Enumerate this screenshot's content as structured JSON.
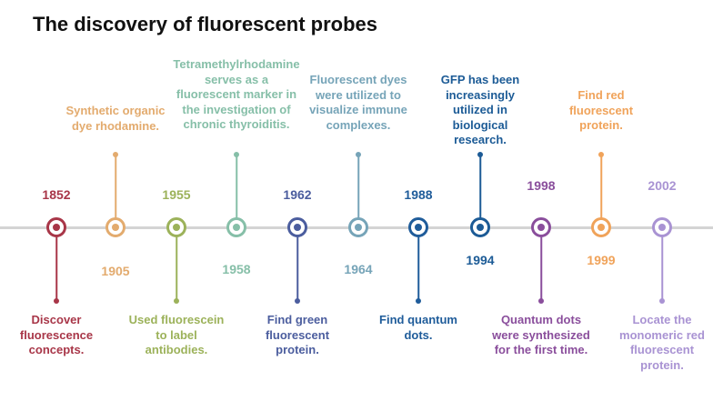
{
  "title": "The discovery of fluorescent probes",
  "events": [
    {
      "year": "1852",
      "color": "#a83648",
      "text": [
        "Discover",
        "fluorescence",
        "concepts."
      ]
    },
    {
      "year": "1905",
      "color": "#e3ab6e",
      "text": [
        "Synthetic organic",
        "dye rhodamine."
      ]
    },
    {
      "year": "1955",
      "color": "#9cb25a",
      "text": [
        "Used fluorescein",
        "to label",
        "antibodies."
      ]
    },
    {
      "year": "1958",
      "color": "#86bfa8",
      "text": [
        "Tetramethylrhodamine",
        "serves as a",
        "fluorescent marker in",
        "the investigation of",
        "chronic thyroiditis."
      ]
    },
    {
      "year": "1962",
      "color": "#4b5d9e",
      "text": [
        "Find green",
        "fluorescent",
        "protein."
      ]
    },
    {
      "year": "1964",
      "color": "#76a4b8",
      "text": [
        "Fluorescent dyes",
        "were utilized to",
        "visualize immune",
        "complexes."
      ]
    },
    {
      "year": "1988",
      "color": "#1f5c9a",
      "text": [
        "Find quantum",
        "dots."
      ]
    },
    {
      "year": "1994",
      "color": "#1c5b96",
      "text": [
        "GFP has been",
        "increasingly",
        "utilized in",
        "biological",
        "research."
      ]
    },
    {
      "year": "1998",
      "color": "#8a4e9c",
      "text": [
        "Quantum dots",
        "were synthesized",
        "for the first time."
      ]
    },
    {
      "year": "1999",
      "color": "#f0a35a",
      "text": [
        "Find red",
        "fluorescent",
        "protein."
      ]
    },
    {
      "year": "2002",
      "color": "#a993d3",
      "text": [
        "Locate the",
        "monomeric red",
        "fluorescent",
        "protein."
      ]
    }
  ]
}
